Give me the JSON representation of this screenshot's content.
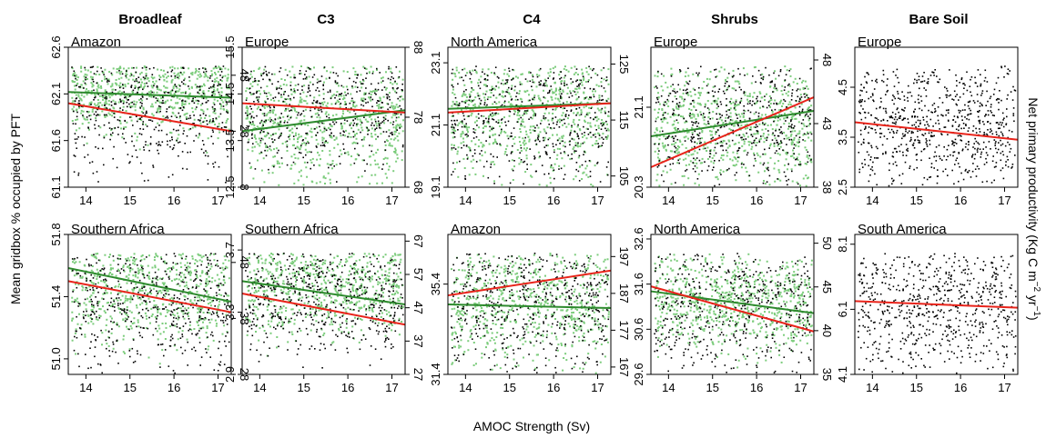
{
  "xlabel": "AMOC Strength (Sv)",
  "ylabel_left": "Mean gridbox % occupied by PFT",
  "ylabel_right_prefix": "Net primary productivity (Kg C m",
  "ylabel_right_sup1": "−2",
  "ylabel_right_mid": " yr",
  "ylabel_right_sup2": "−1",
  "ylabel_right_suffix": ")",
  "columns": [
    "Broadleaf",
    "C3",
    "C4",
    "Shrubs",
    "Bare Soil"
  ],
  "colors": {
    "pft_points": "#000000",
    "npp_points": "#7ccc7c",
    "pft_fit": "#e8231a",
    "npp_fit": "#2e8b2e"
  },
  "chart_data": [
    {
      "type": "scatter",
      "column": "Broadleaf",
      "region": "Amazon",
      "x_ticks": [
        14,
        15,
        16,
        17
      ],
      "xlim": [
        13.6,
        17.3
      ],
      "y_left_ticks": [
        "61.1",
        "61.6",
        "62.1",
        "62.6"
      ],
      "ylim_left": [
        61.1,
        62.6
      ],
      "y_right_ticks": [
        "8",
        "28",
        "48"
      ],
      "ylim_right": [
        8,
        58
      ],
      "pft_fit": {
        "x": [
          13.6,
          17.3
        ],
        "y": [
          62.0,
          61.7
        ]
      },
      "npp_fit": {
        "x": [
          13.6,
          17.3
        ],
        "y": [
          42,
          40
        ]
      },
      "pft_band": [
        61.35,
        62.55
      ],
      "npp_band": [
        30,
        56
      ]
    },
    {
      "type": "scatter",
      "column": "C3",
      "region": "Europe",
      "x_ticks": [
        14,
        15,
        16,
        17
      ],
      "xlim": [
        13.6,
        17.3
      ],
      "y_left_ticks": [
        "12.5",
        "13.5",
        "14.5",
        "15.5"
      ],
      "ylim_left": [
        12.5,
        15.5
      ],
      "y_right_ticks": [
        "68",
        "78",
        "88"
      ],
      "ylim_right": [
        68,
        88
      ],
      "pft_fit": {
        "x": [
          13.6,
          17.3
        ],
        "y": [
          14.3,
          14.1
        ]
      },
      "npp_fit": {
        "x": [
          13.6,
          17.3
        ],
        "y": [
          76,
          79
        ]
      },
      "pft_band": [
        13.3,
        15.4
      ],
      "npp_band": [
        70,
        86
      ]
    },
    {
      "type": "scatter",
      "column": "C4",
      "region": "North America",
      "x_ticks": [
        14,
        15,
        16,
        17
      ],
      "xlim": [
        13.6,
        17.3
      ],
      "y_left_ticks": [
        "19.1",
        "21.1",
        "23.1"
      ],
      "ylim_left": [
        19.1,
        23.6
      ],
      "y_right_ticks": [
        "105",
        "115",
        "125"
      ],
      "ylim_right": [
        103,
        128
      ],
      "pft_fit": {
        "x": [
          13.6,
          17.3
        ],
        "y": [
          21.5,
          21.8
        ]
      },
      "npp_fit": {
        "x": [
          13.6,
          17.3
        ],
        "y": [
          117,
          118
        ]
      },
      "pft_band": [
        19.6,
        23.4
      ],
      "npp_band": [
        108,
        126
      ]
    },
    {
      "type": "scatter",
      "column": "Shrubs",
      "region": "Europe",
      "x_ticks": [
        14,
        15,
        16,
        17
      ],
      "xlim": [
        13.6,
        17.3
      ],
      "y_left_ticks": [
        "20.3",
        "21.1"
      ],
      "ylim_left": [
        20.3,
        21.7
      ],
      "y_right_ticks": [
        "38",
        "43",
        "48"
      ],
      "ylim_right": [
        38,
        49
      ],
      "pft_fit": {
        "x": [
          13.6,
          17.3
        ],
        "y": [
          20.5,
          21.2
        ]
      },
      "npp_fit": {
        "x": [
          13.6,
          17.3
        ],
        "y": [
          42,
          44
        ]
      },
      "pft_band": [
        20.35,
        21.6
      ],
      "npp_band": [
        39,
        47
      ]
    },
    {
      "type": "scatter",
      "column": "Bare Soil",
      "region": "Europe",
      "x_ticks": [
        14,
        15,
        16,
        17
      ],
      "xlim": [
        13.6,
        17.3
      ],
      "y_left_ticks": [
        "2.5",
        "3.5",
        "4.5"
      ],
      "ylim_left": [
        2.5,
        5.3
      ],
      "pft_fit": {
        "x": [
          13.6,
          17.3
        ],
        "y": [
          3.8,
          3.45
        ]
      },
      "pft_band": [
        2.7,
        4.9
      ]
    },
    {
      "type": "scatter",
      "column": "Broadleaf",
      "region": "Southern Africa",
      "x_ticks": [
        14,
        15,
        16,
        17
      ],
      "xlim": [
        13.6,
        17.3
      ],
      "y_left_ticks": [
        "51.0",
        "51.4",
        "51.8"
      ],
      "ylim_left": [
        50.9,
        51.8
      ],
      "y_right_ticks": [
        "28",
        "38",
        "48"
      ],
      "ylim_right": [
        28,
        53
      ],
      "pft_fit": {
        "x": [
          13.6,
          17.3
        ],
        "y": [
          51.5,
          51.3
        ]
      },
      "npp_fit": {
        "x": [
          13.6,
          17.3
        ],
        "y": [
          47,
          41
        ]
      },
      "pft_band": [
        50.95,
        51.75
      ],
      "npp_band": [
        36,
        52
      ]
    },
    {
      "type": "scatter",
      "column": "C3",
      "region": "Southern Africa",
      "x_ticks": [
        14,
        15,
        16,
        17
      ],
      "xlim": [
        13.6,
        17.3
      ],
      "y_left_ticks": [
        "2.9",
        "3.3",
        "3.7"
      ],
      "ylim_left": [
        2.9,
        3.8
      ],
      "y_right_ticks": [
        "27",
        "37",
        "47",
        "57",
        "67"
      ],
      "ylim_right": [
        27,
        69
      ],
      "pft_fit": {
        "x": [
          13.6,
          17.3
        ],
        "y": [
          3.42,
          3.22
        ]
      },
      "npp_fit": {
        "x": [
          13.6,
          17.3
        ],
        "y": [
          55,
          48
        ]
      },
      "pft_band": [
        3.1,
        3.7
      ],
      "npp_band": [
        42,
        66
      ]
    },
    {
      "type": "scatter",
      "column": "C4",
      "region": "Amazon",
      "x_ticks": [
        14,
        15,
        16,
        17
      ],
      "xlim": [
        13.6,
        17.3
      ],
      "y_left_ticks": [
        "31.4",
        "35.4"
      ],
      "ylim_left": [
        31.4,
        37.6
      ],
      "y_right_ticks": [
        "167",
        "177",
        "187",
        "197"
      ],
      "ylim_right": [
        165,
        203
      ],
      "pft_fit": {
        "x": [
          13.6,
          17.3
        ],
        "y": [
          34.9,
          36.0
        ]
      },
      "npp_fit": {
        "x": [
          13.6,
          17.3
        ],
        "y": [
          184,
          183
        ]
      },
      "pft_band": [
        32.2,
        37.3
      ],
      "npp_band": [
        172,
        200
      ]
    },
    {
      "type": "scatter",
      "column": "Shrubs",
      "region": "North America",
      "x_ticks": [
        14,
        15,
        16,
        17
      ],
      "xlim": [
        13.6,
        17.3
      ],
      "y_left_ticks": [
        "29.6",
        "30.6",
        "31.6",
        "32.6"
      ],
      "ylim_left": [
        29.6,
        32.7
      ],
      "y_right_ticks": [
        "35",
        "40",
        "45",
        "50"
      ],
      "ylim_right": [
        35,
        51
      ],
      "pft_fit": {
        "x": [
          13.6,
          17.3
        ],
        "y": [
          31.55,
          30.55
        ]
      },
      "npp_fit": {
        "x": [
          13.6,
          17.3
        ],
        "y": [
          44.5,
          42.0
        ]
      },
      "pft_band": [
        29.7,
        32.6
      ],
      "npp_band": [
        39,
        48
      ]
    },
    {
      "type": "scatter",
      "column": "Bare Soil",
      "region": "South America",
      "x_ticks": [
        14,
        15,
        16,
        17
      ],
      "xlim": [
        13.6,
        17.3
      ],
      "y_left_ticks": [
        "4.1",
        "6.1",
        "8.1"
      ],
      "ylim_left": [
        4.1,
        8.4
      ],
      "pft_fit": {
        "x": [
          13.6,
          17.3
        ],
        "y": [
          6.35,
          6.15
        ]
      },
      "pft_band": [
        4.4,
        8.3
      ]
    }
  ]
}
